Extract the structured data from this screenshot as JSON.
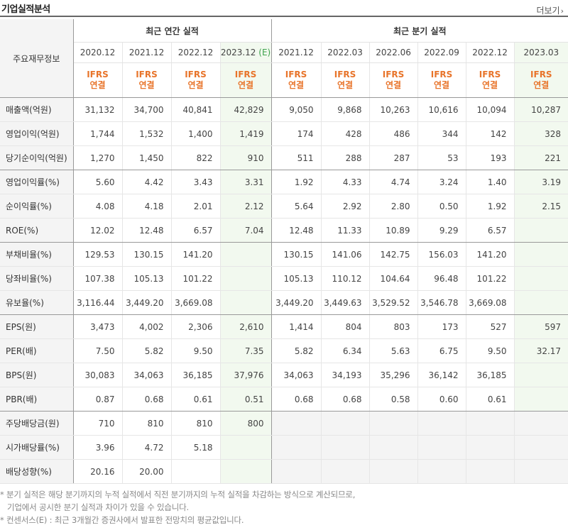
{
  "header": {
    "title": "기업실적분석",
    "more_label": "더보기"
  },
  "table": {
    "corner_label": "주요재무정보",
    "annual_group": "최근 연간 실적",
    "quarter_group": "최근 분기 실적",
    "annual_periods": [
      "2020.12",
      "2021.12",
      "2022.12",
      "2023.12"
    ],
    "quarter_periods": [
      "2021.12",
      "2022.03",
      "2022.06",
      "2022.09",
      "2022.12",
      "2023.03"
    ],
    "est_marker": "(E)",
    "ifrs_line1": "IFRS",
    "ifrs_line2": "연결",
    "rows": [
      {
        "label": "매출액(억원)",
        "annual": [
          "31,132",
          "34,700",
          "40,841",
          "42,829"
        ],
        "quarter": [
          "9,050",
          "9,868",
          "10,263",
          "10,616",
          "10,094",
          "10,287"
        ]
      },
      {
        "label": "영업이익(억원)",
        "annual": [
          "1,744",
          "1,532",
          "1,400",
          "1,419"
        ],
        "quarter": [
          "174",
          "428",
          "486",
          "344",
          "142",
          "328"
        ]
      },
      {
        "label": "당기순이익(억원)",
        "annual": [
          "1,270",
          "1,450",
          "822",
          "910"
        ],
        "quarter": [
          "511",
          "288",
          "287",
          "53",
          "193",
          "221"
        ]
      },
      {
        "label": "영업이익률(%)",
        "annual": [
          "5.60",
          "4.42",
          "3.43",
          "3.31"
        ],
        "quarter": [
          "1.92",
          "4.33",
          "4.74",
          "3.24",
          "1.40",
          "3.19"
        ]
      },
      {
        "label": "순이익률(%)",
        "annual": [
          "4.08",
          "4.18",
          "2.01",
          "2.12"
        ],
        "quarter": [
          "5.64",
          "2.92",
          "2.80",
          "0.50",
          "1.92",
          "2.15"
        ]
      },
      {
        "label": "ROE(%)",
        "annual": [
          "12.02",
          "12.48",
          "6.57",
          "7.04"
        ],
        "quarter": [
          "12.48",
          "11.33",
          "10.89",
          "9.29",
          "6.57",
          ""
        ]
      },
      {
        "label": "부채비율(%)",
        "annual": [
          "129.53",
          "130.15",
          "141.20",
          ""
        ],
        "quarter": [
          "130.15",
          "141.06",
          "142.75",
          "156.03",
          "141.20",
          ""
        ]
      },
      {
        "label": "당좌비율(%)",
        "annual": [
          "107.38",
          "105.13",
          "101.22",
          ""
        ],
        "quarter": [
          "105.13",
          "110.12",
          "104.64",
          "96.48",
          "101.22",
          ""
        ]
      },
      {
        "label": "유보율(%)",
        "annual": [
          "3,116.44",
          "3,449.20",
          "3,669.08",
          ""
        ],
        "quarter": [
          "3,449.20",
          "3,449.63",
          "3,529.52",
          "3,546.78",
          "3,669.08",
          ""
        ]
      },
      {
        "label": "EPS(원)",
        "annual": [
          "3,473",
          "4,002",
          "2,306",
          "2,610"
        ],
        "quarter": [
          "1,414",
          "804",
          "803",
          "173",
          "527",
          "597"
        ]
      },
      {
        "label": "PER(배)",
        "annual": [
          "7.50",
          "5.82",
          "9.50",
          "7.35"
        ],
        "quarter": [
          "5.82",
          "6.34",
          "5.63",
          "6.75",
          "9.50",
          "32.17"
        ]
      },
      {
        "label": "BPS(원)",
        "annual": [
          "30,083",
          "34,063",
          "36,185",
          "37,976"
        ],
        "quarter": [
          "34,063",
          "34,193",
          "35,296",
          "36,142",
          "36,185",
          ""
        ]
      },
      {
        "label": "PBR(배)",
        "annual": [
          "0.87",
          "0.68",
          "0.61",
          "0.51"
        ],
        "quarter": [
          "0.68",
          "0.68",
          "0.58",
          "0.60",
          "0.61",
          ""
        ]
      },
      {
        "label": "주당배당금(원)",
        "annual": [
          "710",
          "810",
          "810",
          "800"
        ],
        "quarter": [
          "",
          "",
          "",
          "",
          "",
          ""
        ]
      },
      {
        "label": "시가배당률(%)",
        "annual": [
          "3.96",
          "4.72",
          "5.18",
          ""
        ],
        "quarter": [
          "",
          "",
          "",
          "",
          "",
          ""
        ]
      },
      {
        "label": "배당성향(%)",
        "annual": [
          "20.16",
          "20.00",
          "",
          ""
        ],
        "quarter": [
          "",
          "",
          "",
          "",
          "",
          ""
        ]
      }
    ]
  },
  "notes": [
    "* 분기 실적은 해당 분기까지의 누적 실적에서 직전 분기까지의 누적 실적을 차감하는 방식으로 계산되므로,",
    "기업에서 공시한 분기 실적과 차이가 있을 수 있습니다.",
    "* 컨센서스(E) : 최근 3개월간 증권사에서 발표한 전망치의 평균값입니다."
  ]
}
